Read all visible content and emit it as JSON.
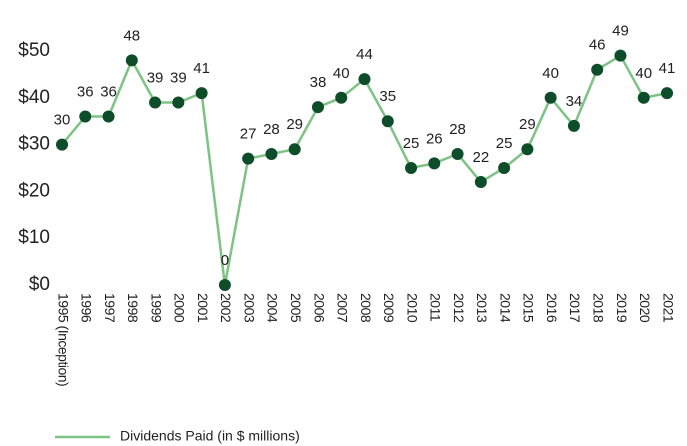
{
  "chart_data": {
    "type": "line",
    "categories": [
      "1995 (Inception)",
      "1996",
      "1997",
      "1998",
      "1999",
      "2000",
      "2001",
      "2002",
      "2003",
      "2004",
      "2005",
      "2006",
      "2007",
      "2008",
      "2009",
      "2010",
      "2011",
      "2012",
      "2013",
      "2014",
      "2015",
      "2016",
      "2017",
      "2018",
      "2019",
      "2020",
      "2021"
    ],
    "series": [
      {
        "name": "Dividends Paid (in $ millions)",
        "color": "#7dc383",
        "marker_color": "#0e4d2a",
        "values": [
          30,
          36,
          36,
          48,
          39,
          39,
          41,
          0,
          27,
          28,
          29,
          38,
          40,
          44,
          35,
          25,
          26,
          28,
          22,
          25,
          29,
          40,
          34,
          46,
          49,
          40,
          41
        ]
      }
    ],
    "ylim": [
      0,
      50
    ],
    "yticks": [
      {
        "value": 0,
        "label": "$0"
      },
      {
        "value": 10,
        "label": "$10"
      },
      {
        "value": 20,
        "label": "$20"
      },
      {
        "value": 30,
        "label": "$30"
      },
      {
        "value": 40,
        "label": "$40"
      },
      {
        "value": 50,
        "label": "$50"
      }
    ],
    "grid": false,
    "legend": "bottom-left"
  }
}
